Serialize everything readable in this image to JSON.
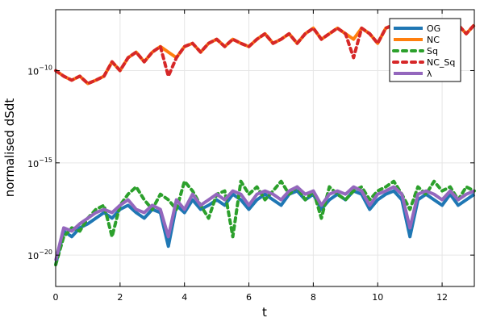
{
  "chart_data": {
    "type": "line",
    "title": "",
    "xlabel": "t",
    "ylabel": "normalised dSdt",
    "xlim": [
      0,
      13
    ],
    "ylim": [
      2e-22,
      2e-07
    ],
    "yscale": "log",
    "grid": true,
    "legend_position": "top-right",
    "xticks": [
      0,
      2,
      4,
      6,
      8,
      10,
      12
    ],
    "xtick_labels": [
      "0",
      "2",
      "4",
      "6",
      "8",
      "10",
      "12"
    ],
    "yticks": [
      1e-20,
      1e-15,
      1e-10
    ],
    "ytick_labels": [
      {
        "base": "10",
        "exp": "−20"
      },
      {
        "base": "10",
        "exp": "−15"
      },
      {
        "base": "10",
        "exp": "−10"
      }
    ],
    "x_start": 0,
    "x_step": 0.25,
    "series": [
      {
        "name": "OG",
        "color": "#1f77b4",
        "style": "solid",
        "values": [
          3e-21,
          2e-19,
          1e-19,
          3e-19,
          5e-19,
          1e-18,
          2e-18,
          1e-18,
          3e-18,
          5e-18,
          2e-18,
          1e-18,
          3e-18,
          2e-18,
          3e-20,
          5e-18,
          2e-18,
          1e-17,
          3e-18,
          5e-18,
          1e-17,
          5e-18,
          2e-17,
          1e-17,
          3e-18,
          1e-17,
          2e-17,
          1e-17,
          5e-18,
          2e-17,
          3e-17,
          1e-17,
          2e-17,
          3e-18,
          1e-17,
          2e-17,
          1e-17,
          3e-17,
          2e-17,
          3e-18,
          1e-17,
          2e-17,
          3e-17,
          1e-17,
          1e-19,
          1e-17,
          2e-17,
          1e-17,
          5e-18,
          2e-17,
          5e-18,
          1e-17,
          2e-17
        ]
      },
      {
        "name": "NC",
        "color": "#ff7f0e",
        "style": "solid",
        "values": [
          1e-10,
          5e-11,
          3e-11,
          5e-11,
          2e-11,
          3e-11,
          5e-11,
          3e-10,
          1e-10,
          5e-10,
          1e-09,
          3e-10,
          1e-09,
          2e-09,
          1e-09,
          5e-10,
          2e-09,
          3e-09,
          1e-09,
          3e-09,
          5e-09,
          2e-09,
          5e-09,
          3e-09,
          2e-09,
          5e-09,
          1e-08,
          3e-09,
          5e-09,
          1e-08,
          3e-09,
          1e-08,
          2e-08,
          5e-09,
          1e-08,
          2e-08,
          1e-08,
          5e-09,
          2e-08,
          1e-08,
          3e-09,
          2e-08,
          3e-08,
          1e-08,
          2e-08,
          3e-08,
          2e-08,
          1e-08,
          3e-08,
          2e-08,
          3e-08,
          1e-08,
          3e-08
        ]
      },
      {
        "name": "Sq",
        "color": "#2ca02c",
        "style": "dashed",
        "values": [
          3e-21,
          1e-19,
          3e-19,
          2e-19,
          1e-18,
          3e-18,
          5e-18,
          1e-19,
          5e-18,
          2e-17,
          5e-17,
          1e-17,
          3e-18,
          2e-17,
          1e-17,
          3e-18,
          1e-16,
          3e-17,
          5e-18,
          1e-18,
          2e-17,
          3e-17,
          1e-19,
          1e-16,
          2e-17,
          5e-17,
          1e-17,
          3e-17,
          1e-16,
          2e-17,
          5e-17,
          1e-17,
          3e-17,
          1e-18,
          5e-17,
          2e-17,
          1e-17,
          3e-17,
          5e-17,
          1e-17,
          3e-17,
          5e-17,
          1e-16,
          2e-17,
          3e-18,
          5e-17,
          2e-17,
          1e-16,
          3e-17,
          5e-17,
          1e-17,
          5e-17,
          3e-17
        ]
      },
      {
        "name": "NC_Sq",
        "color": "#d62728",
        "style": "dashed",
        "values": [
          1e-10,
          5e-11,
          3e-11,
          5e-11,
          2e-11,
          3e-11,
          5e-11,
          3e-10,
          1e-10,
          5e-10,
          1e-09,
          3e-10,
          1e-09,
          2e-09,
          5e-11,
          5e-10,
          2e-09,
          3e-09,
          1e-09,
          3e-09,
          5e-09,
          2e-09,
          5e-09,
          3e-09,
          2e-09,
          5e-09,
          1e-08,
          3e-09,
          5e-09,
          1e-08,
          3e-09,
          1e-08,
          2e-08,
          5e-09,
          1e-08,
          2e-08,
          1e-08,
          5e-10,
          2e-08,
          1e-08,
          3e-09,
          2e-08,
          3e-08,
          1e-08,
          2e-08,
          3e-08,
          2e-08,
          1e-08,
          3e-08,
          2e-08,
          3e-08,
          1e-08,
          3e-08
        ]
      },
      {
        "name": "λ",
        "color": "#9467bd",
        "style": "solid",
        "values": [
          5e-21,
          3e-19,
          2e-19,
          5e-19,
          1e-18,
          2e-18,
          3e-18,
          2e-18,
          5e-18,
          1e-17,
          3e-18,
          2e-18,
          5e-18,
          3e-18,
          1e-19,
          1e-17,
          3e-18,
          2e-17,
          5e-18,
          1e-17,
          2e-17,
          1e-17,
          3e-17,
          2e-17,
          5e-18,
          2e-17,
          3e-17,
          2e-17,
          1e-17,
          3e-17,
          5e-17,
          2e-17,
          3e-17,
          5e-18,
          2e-17,
          3e-17,
          2e-17,
          5e-17,
          3e-17,
          5e-18,
          2e-17,
          3e-17,
          5e-17,
          2e-17,
          3e-19,
          2e-17,
          3e-17,
          2e-17,
          1e-17,
          3e-17,
          1e-17,
          2e-17,
          3e-17
        ]
      }
    ]
  }
}
